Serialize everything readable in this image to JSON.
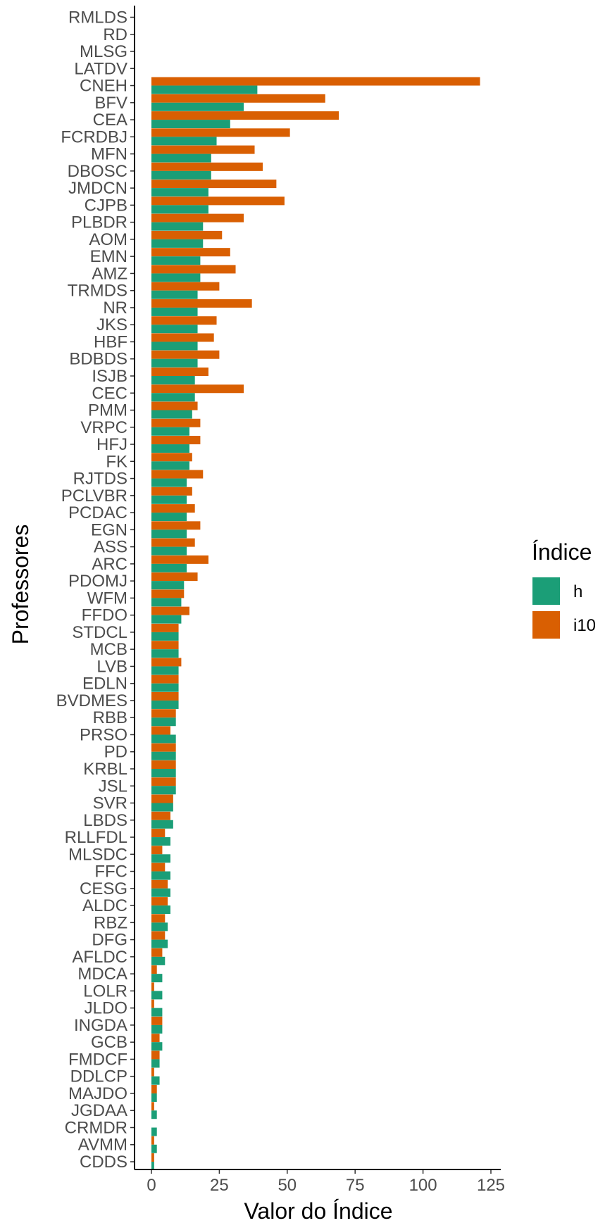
{
  "chart_data": {
    "type": "bar",
    "orientation": "horizontal",
    "xlabel": "Valor do Índice",
    "ylabel": "Professores",
    "xlim": [
      0,
      125
    ],
    "x_ticks": [
      0,
      25,
      50,
      75,
      100,
      125
    ],
    "grid": false,
    "legend": {
      "title": "Índice",
      "position": "right"
    },
    "categories": [
      "RMLDS",
      "RD",
      "MLSG",
      "LATDV",
      "CNEH",
      "BFV",
      "CEA",
      "FCRDBJ",
      "MFN",
      "DBOSC",
      "JMDCN",
      "CJPB",
      "PLBDR",
      "AOM",
      "EMN",
      "AMZ",
      "TRMDS",
      "NR",
      "JKS",
      "HBF",
      "BDBDS",
      "ISJB",
      "CEC",
      "PMM",
      "VRPC",
      "HFJ",
      "FK",
      "RJTDS",
      "PCLVBR",
      "PCDAC",
      "EGN",
      "ASS",
      "ARC",
      "PDOMJ",
      "WFM",
      "FFDO",
      "STDCL",
      "MCB",
      "LVB",
      "EDLN",
      "BVDMES",
      "RBB",
      "PRSO",
      "PD",
      "KRBL",
      "JSL",
      "SVR",
      "LBDS",
      "RLLFDL",
      "MLSDC",
      "FFC",
      "CESG",
      "ALDC",
      "RBZ",
      "DFG",
      "AFLDC",
      "MDCA",
      "LOLR",
      "JLDO",
      "INGDA",
      "GCB",
      "FMDCF",
      "DDLCP",
      "MAJDO",
      "JGDAA",
      "CRMDR",
      "AVMM",
      "CDDS"
    ],
    "series": [
      {
        "name": "h",
        "color": "#1b9e77",
        "values": [
          0,
          0,
          0,
          0,
          39,
          34,
          29,
          24,
          22,
          22,
          21,
          21,
          19,
          19,
          18,
          18,
          17,
          17,
          17,
          17,
          17,
          16,
          16,
          15,
          14,
          14,
          14,
          13,
          13,
          13,
          13,
          13,
          13,
          12,
          11,
          11,
          10,
          10,
          10,
          10,
          10,
          9,
          9,
          9,
          9,
          9,
          8,
          8,
          7,
          7,
          7,
          7,
          7,
          6,
          6,
          5,
          4,
          4,
          4,
          4,
          4,
          3,
          3,
          2,
          2,
          2,
          2,
          1
        ]
      },
      {
        "name": "i10",
        "color": "#d95f02",
        "values": [
          0,
          0,
          0,
          0,
          121,
          64,
          69,
          51,
          38,
          41,
          46,
          49,
          34,
          26,
          29,
          31,
          25,
          37,
          24,
          23,
          25,
          21,
          34,
          17,
          18,
          18,
          15,
          19,
          15,
          16,
          18,
          16,
          21,
          17,
          12,
          14,
          10,
          10,
          11,
          10,
          10,
          9,
          7,
          9,
          9,
          9,
          8,
          7,
          5,
          4,
          5,
          6,
          6,
          5,
          5,
          4,
          2,
          1,
          1,
          4,
          3,
          3,
          1,
          2,
          1,
          0,
          1,
          1
        ]
      }
    ]
  }
}
